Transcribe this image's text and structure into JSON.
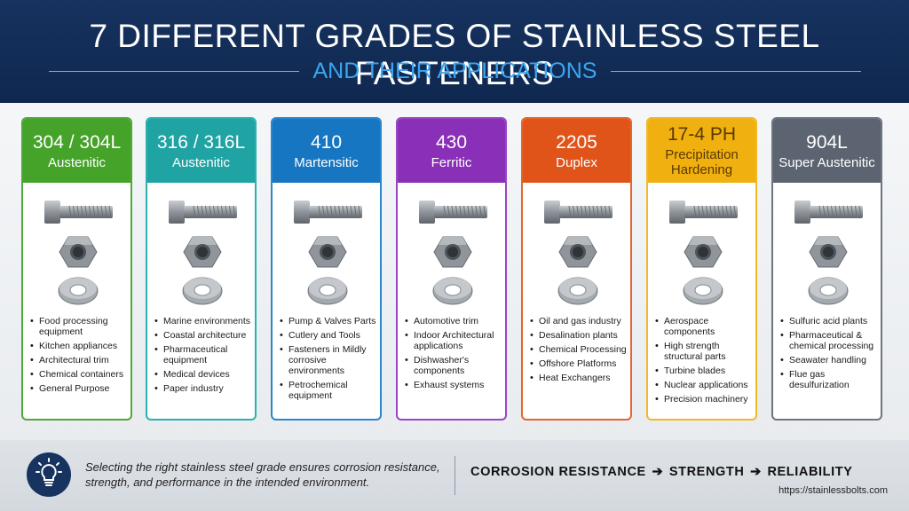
{
  "header": {
    "title": "7 DIFFERENT GRADES OF STAINLESS STEEL FASTENERS",
    "subtitle": "AND THEIR APPLICATIONS"
  },
  "grades": [
    {
      "grade": "304 / 304L",
      "type": "Austenitic",
      "color": "#46a32a",
      "border": "#4fa93a",
      "apps": [
        "Food processing equipment",
        "Kitchen appliances",
        "Architectural trim",
        "Chemical containers",
        "General Purpose"
      ]
    },
    {
      "grade": "316 / 316L",
      "type": "Austenitic",
      "color": "#1fa3a3",
      "border": "#2bb1b1",
      "apps": [
        "Marine environments",
        "Coastal architecture",
        "Pharmaceutical equipment",
        "Medical devices",
        "Paper industry"
      ]
    },
    {
      "grade": "410",
      "type": "Martensitic",
      "color": "#1676c2",
      "border": "#2a86cf",
      "apps": [
        "Pump & Valves Parts",
        "Cutlery and Tools",
        "Fasteners in Mildly corrosive environments",
        "Petrochemical equipment"
      ]
    },
    {
      "grade": "430",
      "type": "Ferritic",
      "color": "#8a2fb8",
      "border": "#9a45c6",
      "apps": [
        "Automotive trim",
        "Indoor Architectural applications",
        "Dishwasher's components",
        "Exhaust systems"
      ]
    },
    {
      "grade": "2205",
      "type": "Duplex",
      "color": "#e0541a",
      "border": "#e5652c",
      "apps": [
        "Oil and gas industry",
        "Desalination plants",
        "Chemical Processing",
        "Offshore Platforms",
        "Heat Exchangers"
      ]
    },
    {
      "grade": "17-4 PH",
      "type": "Precipitation Hardening",
      "color": "#f0b010",
      "border": "#f2b825",
      "text_color": "#5a3a00",
      "apps": [
        "Aerospace components",
        "High strength structural parts",
        "Turbine blades",
        "Nuclear applications",
        "Precision machinery"
      ]
    },
    {
      "grade": "904L",
      "type": "Super Austenitic",
      "color": "#5b6470",
      "border": "#6c7580",
      "apps": [
        "Sulfuric acid plants",
        "Pharmaceutical & chemical processing",
        "Seawater handling",
        "Flue gas desulfurization"
      ]
    }
  ],
  "footer": {
    "icon": "lightbulb-icon",
    "text": "Selecting the right stainless steel grade ensures corrosion resistance, strength, and performance in the intended environment.",
    "tagline": [
      "CORROSION RESISTANCE",
      "STRENGTH",
      "RELIABILITY"
    ],
    "url": "https://stainlessbolts.com"
  }
}
